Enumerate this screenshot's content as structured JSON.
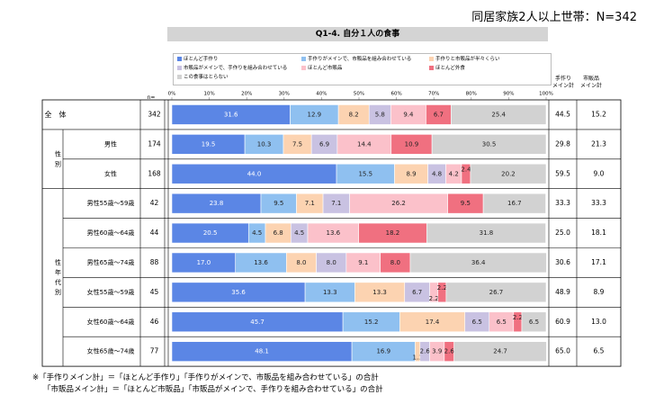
{
  "header": {
    "title": "同居家族2人以上世帯：N=342"
  },
  "question": {
    "title": "Q1-4. 自分１人の食事"
  },
  "legend": [
    {
      "label": "ほとんど手作り",
      "color": "#5b86e5"
    },
    {
      "label": "手作りがメインで、市販品を組み合わせている",
      "color": "#8fc0f0"
    },
    {
      "label": "手作りと市販品が半々くらい",
      "color": "#fcd3b1"
    },
    {
      "label": "市販品がメインで、手作りを組み合わせている",
      "color": "#c9c2e2"
    },
    {
      "label": "ほとんど市販品",
      "color": "#fbc1ca"
    },
    {
      "label": "ほとんど外食",
      "color": "#f07080"
    },
    {
      "label": "この食事はとらない",
      "color": "#d2d2d2"
    }
  ],
  "columns": {
    "n": "n=",
    "tezukuri": "手作り\nメイン計",
    "shihan": "市販品\nメイン計"
  },
  "chart_data": {
    "type": "bar",
    "stacked": true,
    "orientation": "horizontal",
    "xlim": [
      0,
      100
    ],
    "x_ticks": [
      "0%",
      "10%",
      "20%",
      "30%",
      "40%",
      "50%",
      "60%",
      "70%",
      "80%",
      "90%",
      "100%"
    ],
    "groups": [
      {
        "label": "全　体",
        "rows": [
          0
        ]
      },
      {
        "label": "性\n別",
        "rows": [
          1,
          2
        ]
      },
      {
        "label": "性\n年\n代\n別",
        "rows": [
          3,
          4,
          5,
          6,
          7,
          8
        ]
      }
    ],
    "categories": [
      "全　体",
      "男性",
      "女性",
      "男性55歳～59歳",
      "男性60歳～64歳",
      "男性65歳～74歳",
      "女性55歳～59歳",
      "女性60歳～64歳",
      "女性65歳～74歳"
    ],
    "n": [
      342,
      174,
      168,
      42,
      44,
      88,
      45,
      46,
      77
    ],
    "series": [
      {
        "name": "ほとんど手作り",
        "values": [
          31.6,
          19.5,
          44.0,
          23.8,
          20.5,
          17.0,
          35.6,
          45.7,
          48.1
        ]
      },
      {
        "name": "手作りがメインで、市販品を組み合わせている",
        "values": [
          12.9,
          10.3,
          15.5,
          9.5,
          4.5,
          13.6,
          13.3,
          15.2,
          16.9
        ]
      },
      {
        "name": "手作りと市販品が半々くらい",
        "values": [
          8.2,
          7.5,
          8.9,
          7.1,
          6.8,
          8.0,
          13.3,
          17.4,
          1.3
        ]
      },
      {
        "name": "市販品がメインで、手作りを組み合わせている",
        "values": [
          5.8,
          6.9,
          4.8,
          7.1,
          4.5,
          8.0,
          6.7,
          6.5,
          2.6
        ]
      },
      {
        "name": "ほとんど市販品",
        "values": [
          9.4,
          14.4,
          4.2,
          26.2,
          13.6,
          9.1,
          2.2,
          6.5,
          3.9
        ]
      },
      {
        "name": "ほとんど外食",
        "values": [
          6.7,
          10.9,
          2.4,
          9.5,
          18.2,
          8.0,
          2.2,
          2.2,
          2.6
        ]
      },
      {
        "name": "この食事はとらない",
        "values": [
          25.4,
          30.5,
          20.2,
          16.7,
          31.8,
          36.4,
          26.7,
          6.5,
          24.7
        ]
      }
    ],
    "tezukuri_main": [
      44.5,
      29.8,
      59.5,
      33.3,
      25.0,
      30.6,
      48.9,
      60.9,
      65.0
    ],
    "shihan_main": [
      15.2,
      21.3,
      9.0,
      33.3,
      18.1,
      17.1,
      8.9,
      13.0,
      6.5
    ]
  },
  "footnotes": [
    "※「手作りメイン計」＝「ほとんど手作り」「手作りがメインで、市販品を組み合わせている」の合計",
    "「市販品メイン計」＝「ほとんど市販品」「市販品がメインで、手作りを組み合わせている」の合計"
  ]
}
